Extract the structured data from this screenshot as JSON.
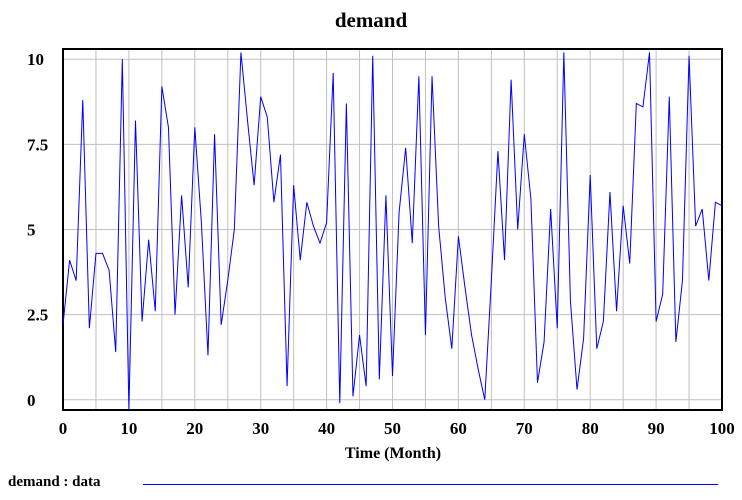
{
  "chart_data": {
    "type": "line",
    "title": "demand",
    "xlabel": "Time (Month)",
    "ylabel": "",
    "xlim": [
      0,
      100
    ],
    "ylim": [
      -0.3,
      10.3
    ],
    "xticks": [
      "0",
      "10",
      "20",
      "30",
      "40",
      "50",
      "60",
      "70",
      "80",
      "90",
      "100"
    ],
    "yticks": [
      "0",
      "2.5",
      "5",
      "7.5",
      "10"
    ],
    "grid": true,
    "legend_position": "bottom-left",
    "color": "#0000ff",
    "series": [
      {
        "name": "demand : data",
        "x": [
          0,
          1,
          2,
          3,
          4,
          5,
          6,
          7,
          8,
          9,
          10,
          11,
          12,
          13,
          14,
          15,
          16,
          17,
          18,
          19,
          20,
          21,
          22,
          23,
          24,
          25,
          26,
          27,
          28,
          29,
          30,
          31,
          32,
          33,
          34,
          35,
          36,
          37,
          38,
          39,
          40,
          41,
          42,
          43,
          44,
          45,
          46,
          47,
          48,
          49,
          50,
          51,
          52,
          53,
          54,
          55,
          56,
          57,
          58,
          59,
          60,
          61,
          62,
          63,
          64,
          65,
          66,
          67,
          68,
          69,
          70,
          71,
          72,
          73,
          74,
          75,
          76,
          77,
          78,
          79,
          80,
          81,
          82,
          83,
          84,
          85,
          86,
          87,
          88,
          89,
          90,
          91,
          92,
          93,
          94,
          95,
          96,
          97,
          98,
          99,
          100
        ],
        "y": [
          2.2,
          4.1,
          3.5,
          8.8,
          2.1,
          4.3,
          4.3,
          3.8,
          1.4,
          10.0,
          -0.3,
          8.2,
          2.3,
          4.7,
          2.6,
          9.2,
          8.0,
          2.5,
          6.0,
          3.3,
          8.0,
          5.2,
          1.3,
          7.8,
          2.2,
          3.5,
          5.0,
          10.2,
          8.2,
          6.3,
          8.9,
          8.3,
          5.8,
          7.2,
          0.4,
          6.3,
          4.1,
          5.8,
          5.1,
          4.6,
          5.2,
          9.6,
          -0.1,
          8.7,
          0.1,
          1.9,
          0.4,
          10.1,
          0.6,
          6.0,
          0.7,
          5.5,
          7.4,
          4.6,
          9.5,
          1.9,
          9.5,
          5.1,
          3.0,
          1.5,
          4.8,
          3.3,
          1.9,
          0.9,
          0.0,
          3.5,
          7.3,
          4.1,
          9.4,
          5.0,
          7.8,
          5.9,
          0.5,
          1.7,
          5.6,
          2.1,
          10.2,
          2.9,
          0.3,
          1.8,
          6.6,
          1.5,
          2.3,
          6.1,
          2.6,
          5.7,
          4.0,
          8.7,
          8.6,
          10.2,
          2.3,
          3.1,
          8.9,
          1.7,
          3.5,
          10.1,
          5.1,
          5.6,
          3.5,
          5.8,
          5.7
        ]
      }
    ]
  }
}
